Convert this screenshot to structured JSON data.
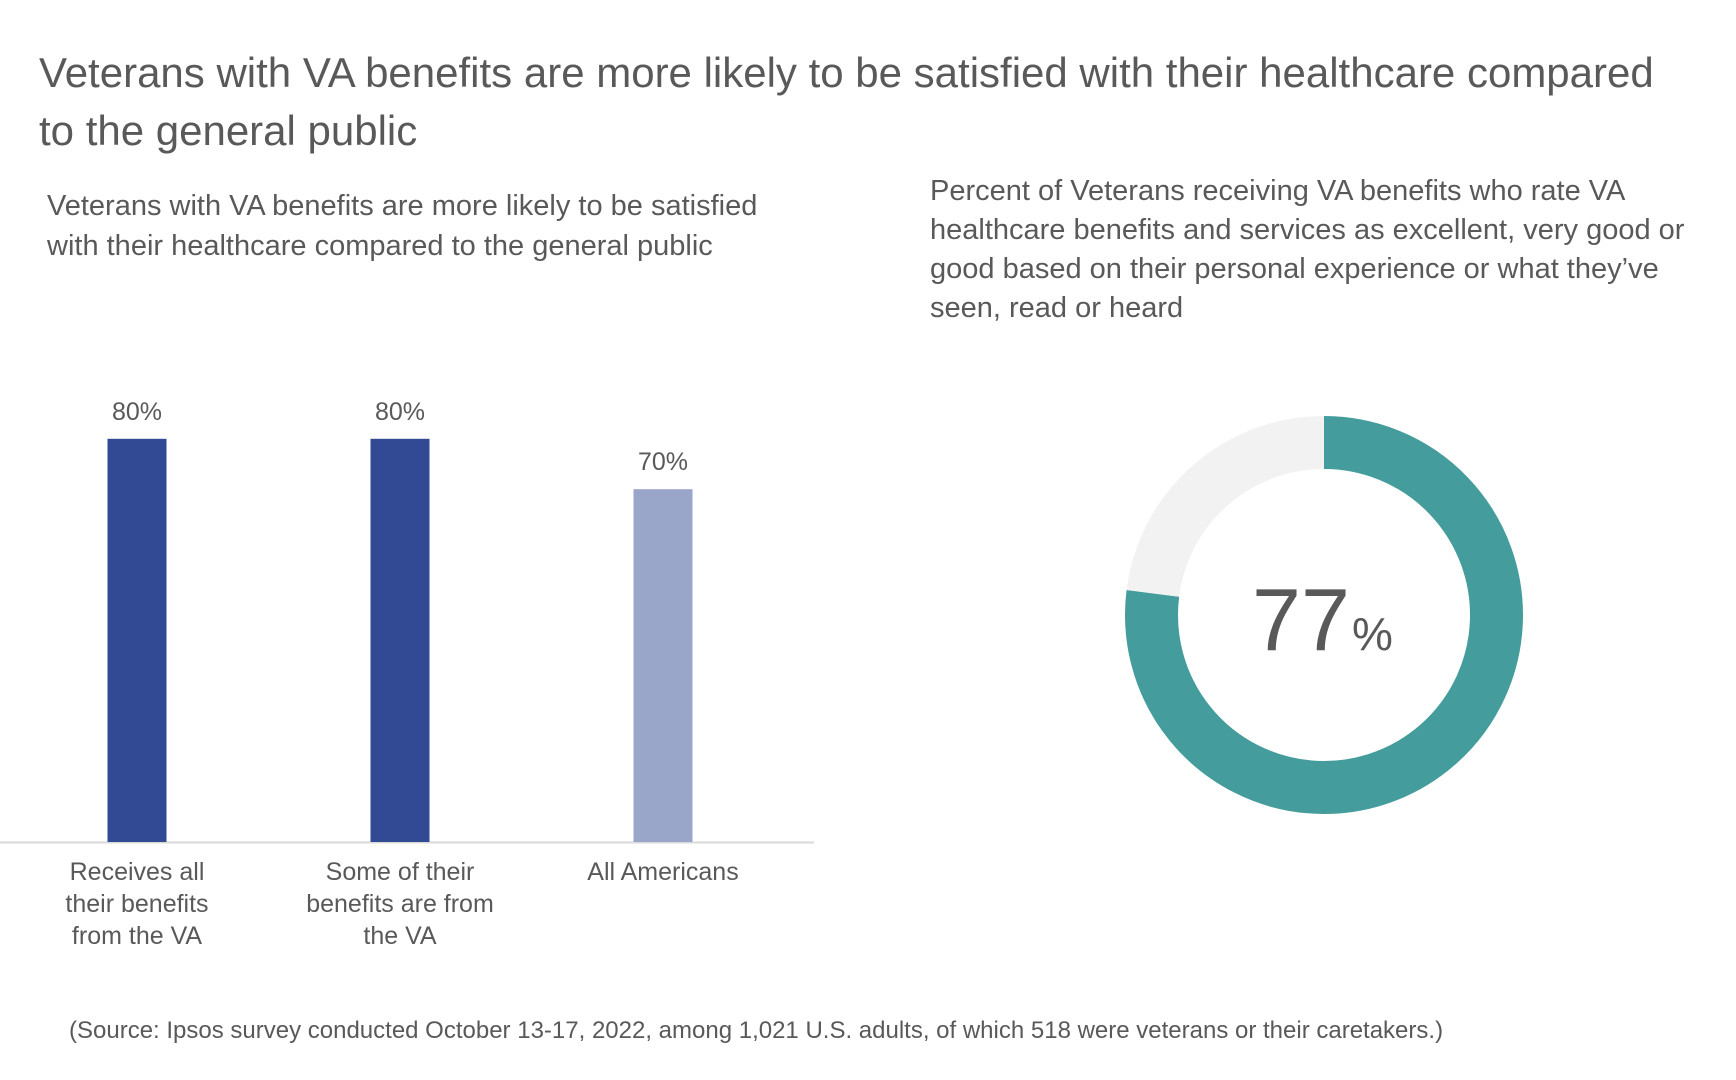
{
  "title": "Veterans with VA benefits are more likely to be satisfied with their healthcare compared to the general public",
  "source": "(Source: Ipsos survey conducted October 13-17, 2022, among 1,021 U.S. adults, of which 518 were veterans or their caretakers.)",
  "chart_data": [
    {
      "type": "bar",
      "title": "Veterans with VA benefits are more likely to be satisfied with their healthcare compared to the general public",
      "categories": [
        [
          "Receives all",
          "their benefits",
          "from the VA"
        ],
        [
          "Some of their",
          "benefits are from",
          "the VA"
        ],
        [
          "All Americans"
        ]
      ],
      "values": [
        80,
        80,
        70
      ],
      "data_labels": [
        "80%",
        "80%",
        "70%"
      ],
      "colors": [
        "#324A94",
        "#324A94",
        "#9AA5CA"
      ],
      "unit": "%",
      "ylim": [
        0,
        100
      ],
      "grid": false,
      "axis_color": "#D9D9D9"
    },
    {
      "type": "pie",
      "subtype": "donut",
      "title": "Percent of Veterans receiving VA benefits who rate VA healthcare benefits and services as excellent, very good or good based on their personal experience or what they’ve seen, read or heard",
      "values": [
        77,
        23
      ],
      "center_value": "77",
      "center_unit": "%",
      "colors": [
        "#459C9C",
        "#F2F2F2"
      ]
    }
  ]
}
